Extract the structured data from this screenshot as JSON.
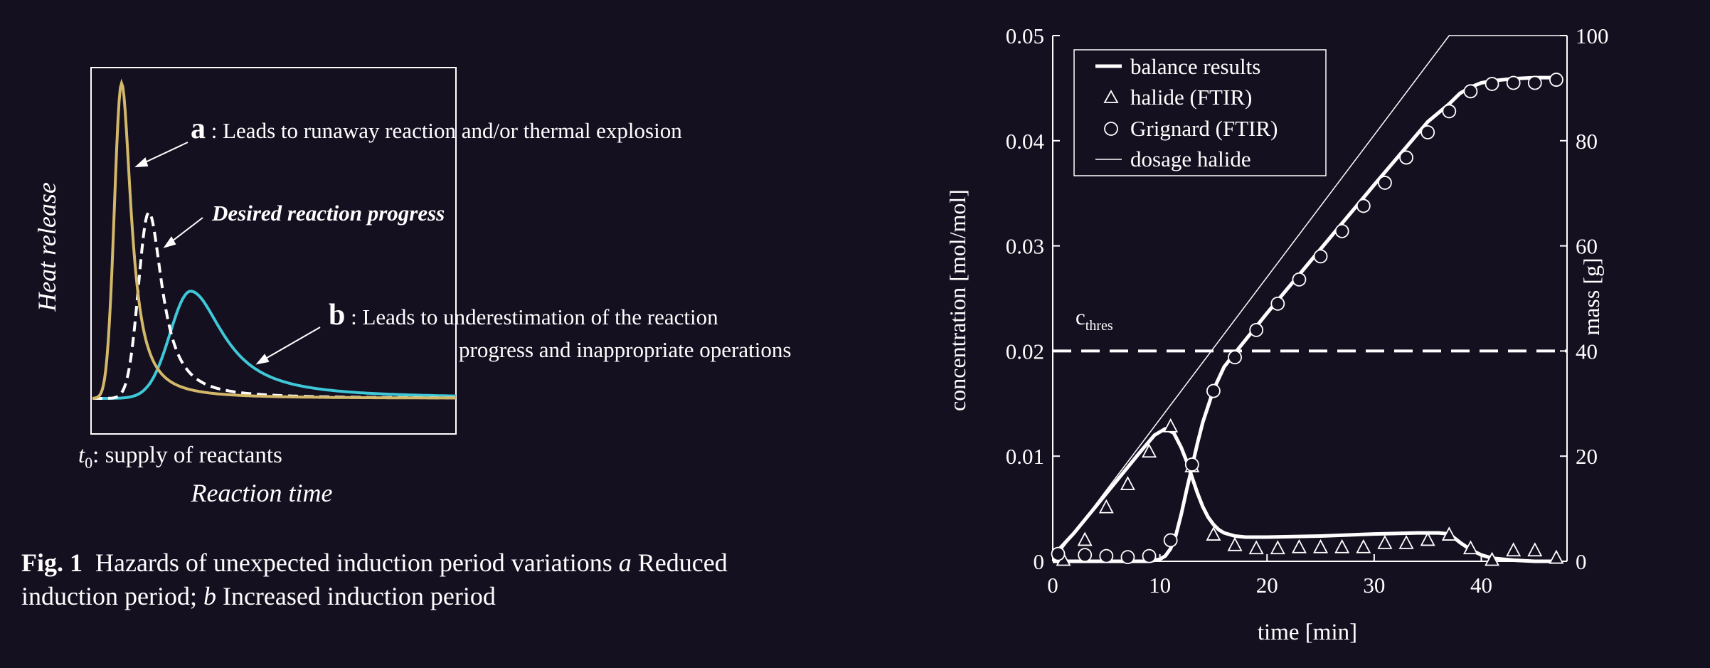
{
  "left": {
    "ylabel": "Heat release",
    "xlabel": "Reaction time",
    "t0_symbol": "t",
    "t0_sub": "0",
    "t0_text": ": supply of reactants",
    "ann_a_letter": "a",
    "ann_a_text": " : Leads to runaway reaction and/or thermal explosion",
    "ann_desired": "Desired reaction progress",
    "ann_b_letter": "b",
    "ann_b_text_1": " : Leads to underestimation of the reaction",
    "ann_b_text_2": "progress and inappropriate operations",
    "caption_fig": "Fig. 1",
    "caption_line1_a": "Hazards of unexpected induction period variations ",
    "caption_line1_b": "a",
    "caption_line1_c": " Reduced",
    "caption_line2_a": "induction period; ",
    "caption_line2_b": "b",
    "caption_line2_c": " Increased induction period",
    "colors": {
      "a": "#d4b86a",
      "desired": "#ffffff",
      "b": "#3ec8d8",
      "frame": "#ffffff"
    }
  },
  "chart_data": [
    {
      "type": "line",
      "ylabel": "Heat release",
      "xlabel": "Reaction time",
      "series": [
        {
          "name": "a",
          "style": "solid",
          "color": "#d4b86a",
          "peak": {
            "x": 0.08,
            "y": 1.0
          }
        },
        {
          "name": "Desired reaction progress",
          "style": "dashed",
          "color": "#ffffff",
          "peak": {
            "x": 0.155,
            "y": 0.59
          }
        },
        {
          "name": "b",
          "style": "solid",
          "color": "#3ec8d8",
          "peak": {
            "x": 0.27,
            "y": 0.34
          }
        }
      ]
    },
    {
      "type": "line",
      "xlabel": "time [min]",
      "ylabel": "concentration [mol/mol]",
      "y2label": "mass [g]",
      "xlim": [
        0,
        48
      ],
      "ylim": [
        0,
        0.05
      ],
      "y2lim": [
        0,
        100
      ],
      "xticks": [
        "0",
        "10",
        "20",
        "30",
        "40"
      ],
      "yticks": [
        "0",
        "0.01",
        "0.02",
        "0.03",
        "0.04",
        "0.05"
      ],
      "y2ticks": [
        "0",
        "20",
        "40",
        "60",
        "80",
        "100"
      ],
      "legend": [
        "balance results",
        "halide (FTIR)",
        "Grignard (FTIR)",
        "dosage halide"
      ],
      "legend_placement": "top-left",
      "threshold": {
        "label": "c",
        "label_sub": "thres",
        "y": 0.02
      },
      "dosage_halide": {
        "x": [
          0,
          37,
          48
        ],
        "y_mass": [
          0,
          100,
          100
        ]
      },
      "balance_halide": {
        "x": [
          0,
          2,
          4,
          6,
          8,
          9.5,
          10.5,
          11.3,
          12,
          12.5,
          13,
          13.5,
          14,
          14.5,
          15,
          15.5,
          16,
          17,
          18,
          20,
          25,
          30,
          34,
          36,
          37,
          38,
          39,
          40,
          41,
          43,
          45,
          47
        ],
        "y": [
          0.0005,
          0.0027,
          0.0052,
          0.0077,
          0.0102,
          0.012,
          0.0126,
          0.0122,
          0.0108,
          0.0095,
          0.008,
          0.0065,
          0.0052,
          0.0042,
          0.0035,
          0.003,
          0.0027,
          0.0024,
          0.0023,
          0.0023,
          0.0024,
          0.0026,
          0.0027,
          0.0027,
          0.0026,
          0.0018,
          0.0011,
          0.0006,
          0.0003,
          0.0001,
          0.0,
          0.0
        ]
      },
      "balance_grignard": {
        "x": [
          0,
          9,
          10,
          10.5,
          11,
          11.5,
          12,
          12.5,
          13,
          13.5,
          14,
          15,
          16,
          17,
          20,
          25,
          30,
          35,
          37,
          38,
          39,
          40,
          41,
          43,
          45,
          47
        ],
        "y": [
          0.0,
          0.0,
          0.0002,
          0.0005,
          0.0012,
          0.0025,
          0.0045,
          0.0068,
          0.009,
          0.0112,
          0.0132,
          0.0163,
          0.0185,
          0.0198,
          0.0236,
          0.0297,
          0.0358,
          0.0418,
          0.0435,
          0.0445,
          0.0451,
          0.0455,
          0.0457,
          0.0459,
          0.046,
          0.046
        ]
      },
      "halide_ftir": {
        "x": [
          1,
          3,
          5,
          7,
          9,
          11,
          13,
          15,
          17,
          19,
          21,
          23,
          25,
          27,
          29,
          31,
          33,
          35,
          37,
          39,
          41,
          43,
          45,
          47
        ],
        "y": [
          0.0001,
          0.002,
          0.0051,
          0.0073,
          0.0104,
          0.0128,
          0.009,
          0.0025,
          0.0015,
          0.0012,
          0.0012,
          0.0013,
          0.0013,
          0.0013,
          0.0013,
          0.0017,
          0.0017,
          0.002,
          0.0025,
          0.0012,
          0.0001,
          0.001,
          0.001,
          0.0003
        ]
      },
      "grignard_ftir": {
        "x": [
          0.5,
          3,
          5,
          7,
          9,
          11,
          13,
          15,
          17,
          19,
          21,
          23,
          25,
          27,
          29,
          31,
          33,
          35,
          37,
          39,
          41,
          43,
          45,
          47
        ],
        "y": [
          0.0007,
          0.0006,
          0.0005,
          0.0004,
          0.0005,
          0.002,
          0.0092,
          0.0162,
          0.0194,
          0.022,
          0.0245,
          0.0268,
          0.029,
          0.0314,
          0.0338,
          0.036,
          0.0384,
          0.0408,
          0.0428,
          0.0447,
          0.0454,
          0.0455,
          0.0455,
          0.0458
        ]
      }
    }
  ]
}
